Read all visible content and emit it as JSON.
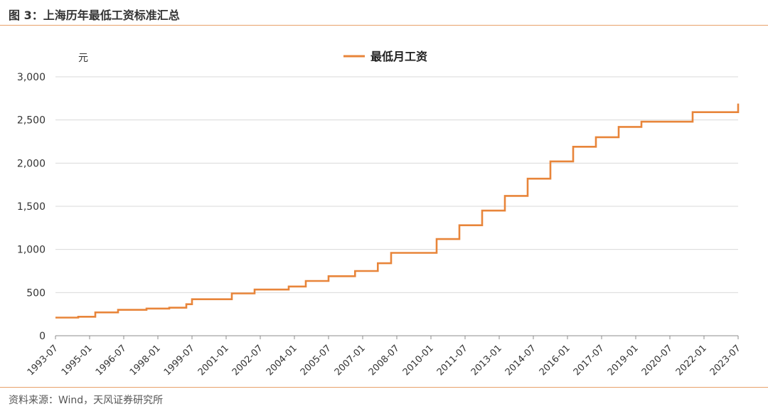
{
  "figure": {
    "title": "图 3：上海历年最低工资标准汇总",
    "source": "资料来源：Wind，天风证券研究所"
  },
  "chart_data": {
    "type": "line",
    "y_unit": "元",
    "ylim": [
      0,
      3000
    ],
    "y_ticks": [
      0,
      500,
      1000,
      1500,
      2000,
      2500,
      3000
    ],
    "y_tick_labels": [
      "0",
      "500",
      "1,000",
      "1,500",
      "2,000",
      "2,500",
      "3,000"
    ],
    "x_range": [
      "1993-07",
      "2023-07"
    ],
    "x_tick_labels": [
      "1993-07",
      "1995-01",
      "1996-07",
      "1998-01",
      "1999-07",
      "2001-01",
      "2002-07",
      "2004-01",
      "2005-07",
      "2007-01",
      "2008-07",
      "2010-01",
      "2011-07",
      "2013-01",
      "2014-07",
      "2016-01",
      "2017-07",
      "2019-01",
      "2020-07",
      "2022-01",
      "2023-07"
    ],
    "grid": true,
    "legend_position": "top-center",
    "series": [
      {
        "name": "最低月工资",
        "color": "#e8853a",
        "step": true,
        "points": [
          [
            "1993-07",
            210
          ],
          [
            "1994-07",
            220
          ],
          [
            "1995-04",
            270
          ],
          [
            "1996-04",
            300
          ],
          [
            "1997-07",
            315
          ],
          [
            "1998-07",
            325
          ],
          [
            "1999-04",
            365
          ],
          [
            "1999-07",
            423
          ],
          [
            "2001-04",
            490
          ],
          [
            "2002-04",
            535
          ],
          [
            "2003-10",
            570
          ],
          [
            "2004-07",
            635
          ],
          [
            "2005-07",
            690
          ],
          [
            "2006-09",
            750
          ],
          [
            "2007-09",
            840
          ],
          [
            "2008-04",
            960
          ],
          [
            "2010-04",
            1120
          ],
          [
            "2011-04",
            1280
          ],
          [
            "2012-04",
            1450
          ],
          [
            "2013-04",
            1620
          ],
          [
            "2014-04",
            1820
          ],
          [
            "2015-04",
            2020
          ],
          [
            "2016-04",
            2190
          ],
          [
            "2017-04",
            2300
          ],
          [
            "2018-04",
            2420
          ],
          [
            "2019-04",
            2480
          ],
          [
            "2021-07",
            2590
          ],
          [
            "2023-07",
            2690
          ]
        ]
      }
    ]
  }
}
